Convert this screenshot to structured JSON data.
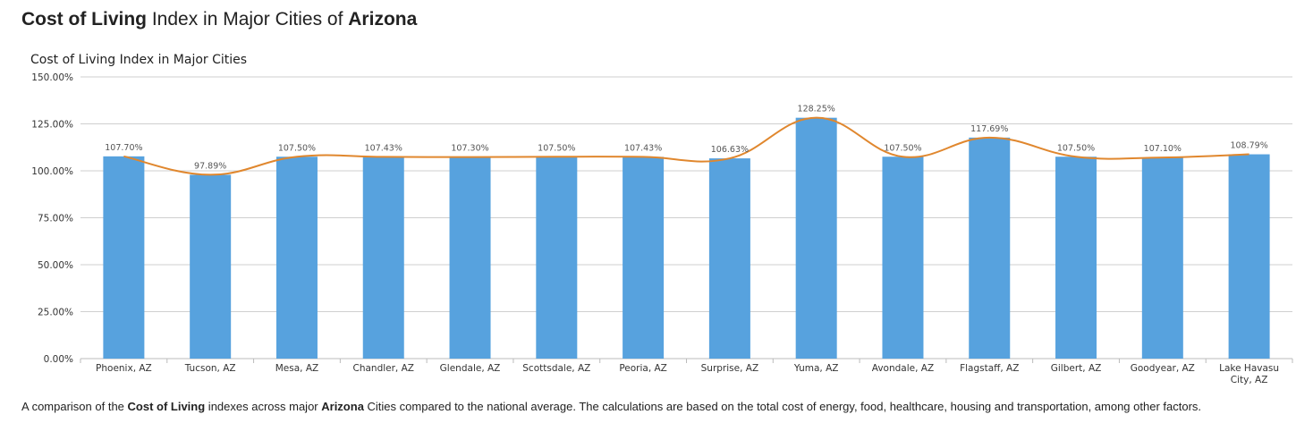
{
  "page": {
    "title_bold_1": "Cost of Living",
    "title_mid": " Index in Major Cities of ",
    "title_bold_2": "Arizona"
  },
  "caption": {
    "part1": "A comparison of the ",
    "bold1": "Cost of Living",
    "part2": " indexes across major ",
    "bold2": "Arizona",
    "part3": " Cities compared to the national average. The calculations are based on the total cost of energy, food, healthcare, housing and transportation, among other factors."
  },
  "colors": {
    "bar": "#57a2de",
    "line": "#e0872e",
    "grid": "#cfcfcf"
  },
  "chart_data": {
    "type": "bar",
    "title": "Cost of Living Index in Major Cities",
    "categories": [
      "Phoenix, AZ",
      "Tucson, AZ",
      "Mesa, AZ",
      "Chandler, AZ",
      "Glendale, AZ",
      "Scottsdale, AZ",
      "Peoria, AZ",
      "Surprise, AZ",
      "Yuma, AZ",
      "Avondale, AZ",
      "Flagstaff, AZ",
      "Gilbert, AZ",
      "Goodyear, AZ",
      "Lake Havasu City, AZ"
    ],
    "category_label_lines": [
      [
        "Phoenix, AZ"
      ],
      [
        "Tucson, AZ"
      ],
      [
        "Mesa, AZ"
      ],
      [
        "Chandler, AZ"
      ],
      [
        "Glendale, AZ"
      ],
      [
        "Scottsdale, AZ"
      ],
      [
        "Peoria, AZ"
      ],
      [
        "Surprise, AZ"
      ],
      [
        "Yuma, AZ"
      ],
      [
        "Avondale, AZ"
      ],
      [
        "Flagstaff, AZ"
      ],
      [
        "Gilbert, AZ"
      ],
      [
        "Goodyear, AZ"
      ],
      [
        "Lake Havasu",
        "City, AZ"
      ]
    ],
    "values": [
      107.7,
      97.89,
      107.5,
      107.43,
      107.3,
      107.5,
      107.43,
      106.63,
      128.25,
      107.5,
      117.69,
      107.5,
      107.1,
      108.79
    ],
    "value_labels": [
      "107.70%",
      "97.89%",
      "107.50%",
      "107.43%",
      "107.30%",
      "107.50%",
      "107.43%",
      "106.63%",
      "128.25%",
      "107.50%",
      "117.69%",
      "107.50%",
      "107.10%",
      "108.79%"
    ],
    "overlay": "smoothed line through bar values",
    "ylim": [
      0,
      150
    ],
    "yticks": [
      0,
      25,
      50,
      75,
      100,
      125,
      150
    ],
    "ytick_labels": [
      "0.00%",
      "25.00%",
      "50.00%",
      "75.00%",
      "100.00%",
      "125.00%",
      "150.00%"
    ],
    "grid": true,
    "legend": "none"
  }
}
